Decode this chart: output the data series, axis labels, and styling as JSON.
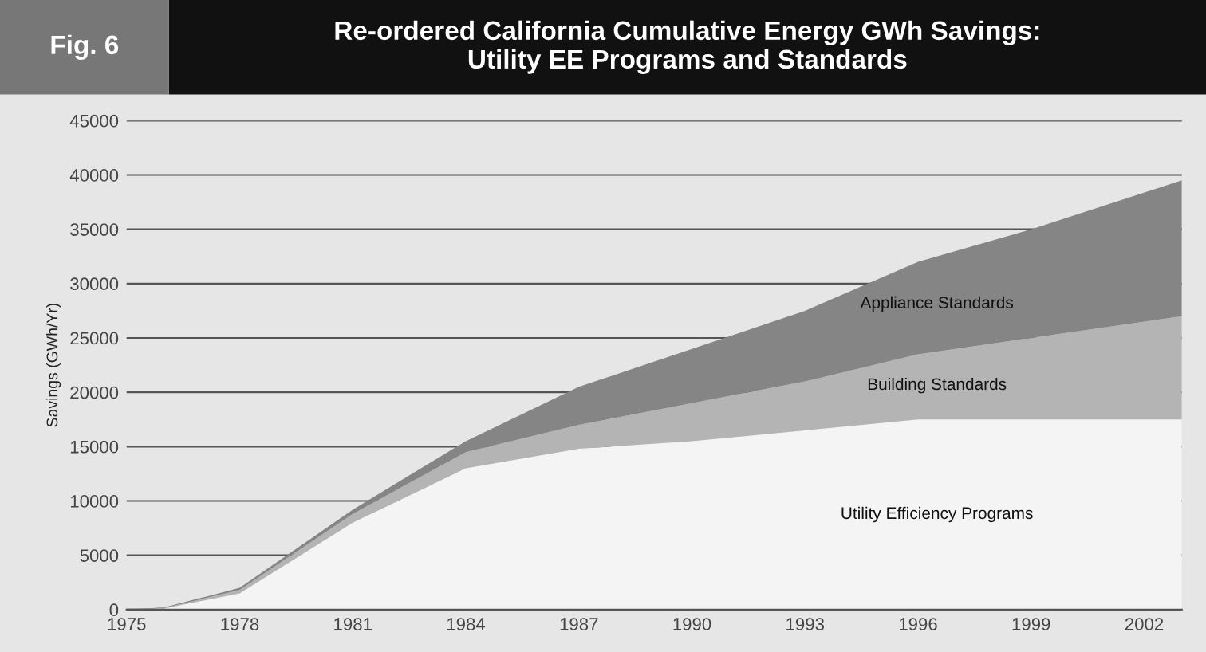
{
  "chart_data": {
    "type": "area",
    "stacked": true,
    "title": "Re-ordered California Cumulative Energy GWh Savings:\nUtility EE Programs and Standards",
    "annotations": [
      "Fig. 6"
    ],
    "ylabel": "Savings (GWh/Yr)",
    "x": [
      1975,
      1976,
      1978,
      1981,
      1984,
      1987,
      1990,
      1993,
      1996,
      1999,
      2003
    ],
    "series": [
      {
        "name": "Utility Efficiency Programs",
        "color": "#f4f4f4",
        "values": [
          0,
          100,
          1500,
          8000,
          13000,
          14800,
          15500,
          16500,
          17500,
          17500,
          17500
        ]
      },
      {
        "name": "Building Standards",
        "color": "#b4b4b4",
        "values": [
          0,
          50,
          300,
          800,
          1500,
          2200,
          3500,
          4500,
          6000,
          7500,
          9500
        ]
      },
      {
        "name": "Appliance Standards",
        "color": "#858585",
        "values": [
          0,
          50,
          200,
          400,
          1000,
          3500,
          5000,
          6500,
          8500,
          10000,
          12500
        ]
      }
    ],
    "xlim": [
      1975,
      2003
    ],
    "xticks": [
      1975,
      1978,
      1981,
      1984,
      1987,
      1990,
      1993,
      1996,
      1999,
      2002
    ],
    "ylim": [
      0,
      45000
    ],
    "yticks": [
      0,
      5000,
      10000,
      15000,
      20000,
      25000,
      30000,
      35000,
      40000,
      45000
    ],
    "grid": "y",
    "legend": false
  }
}
